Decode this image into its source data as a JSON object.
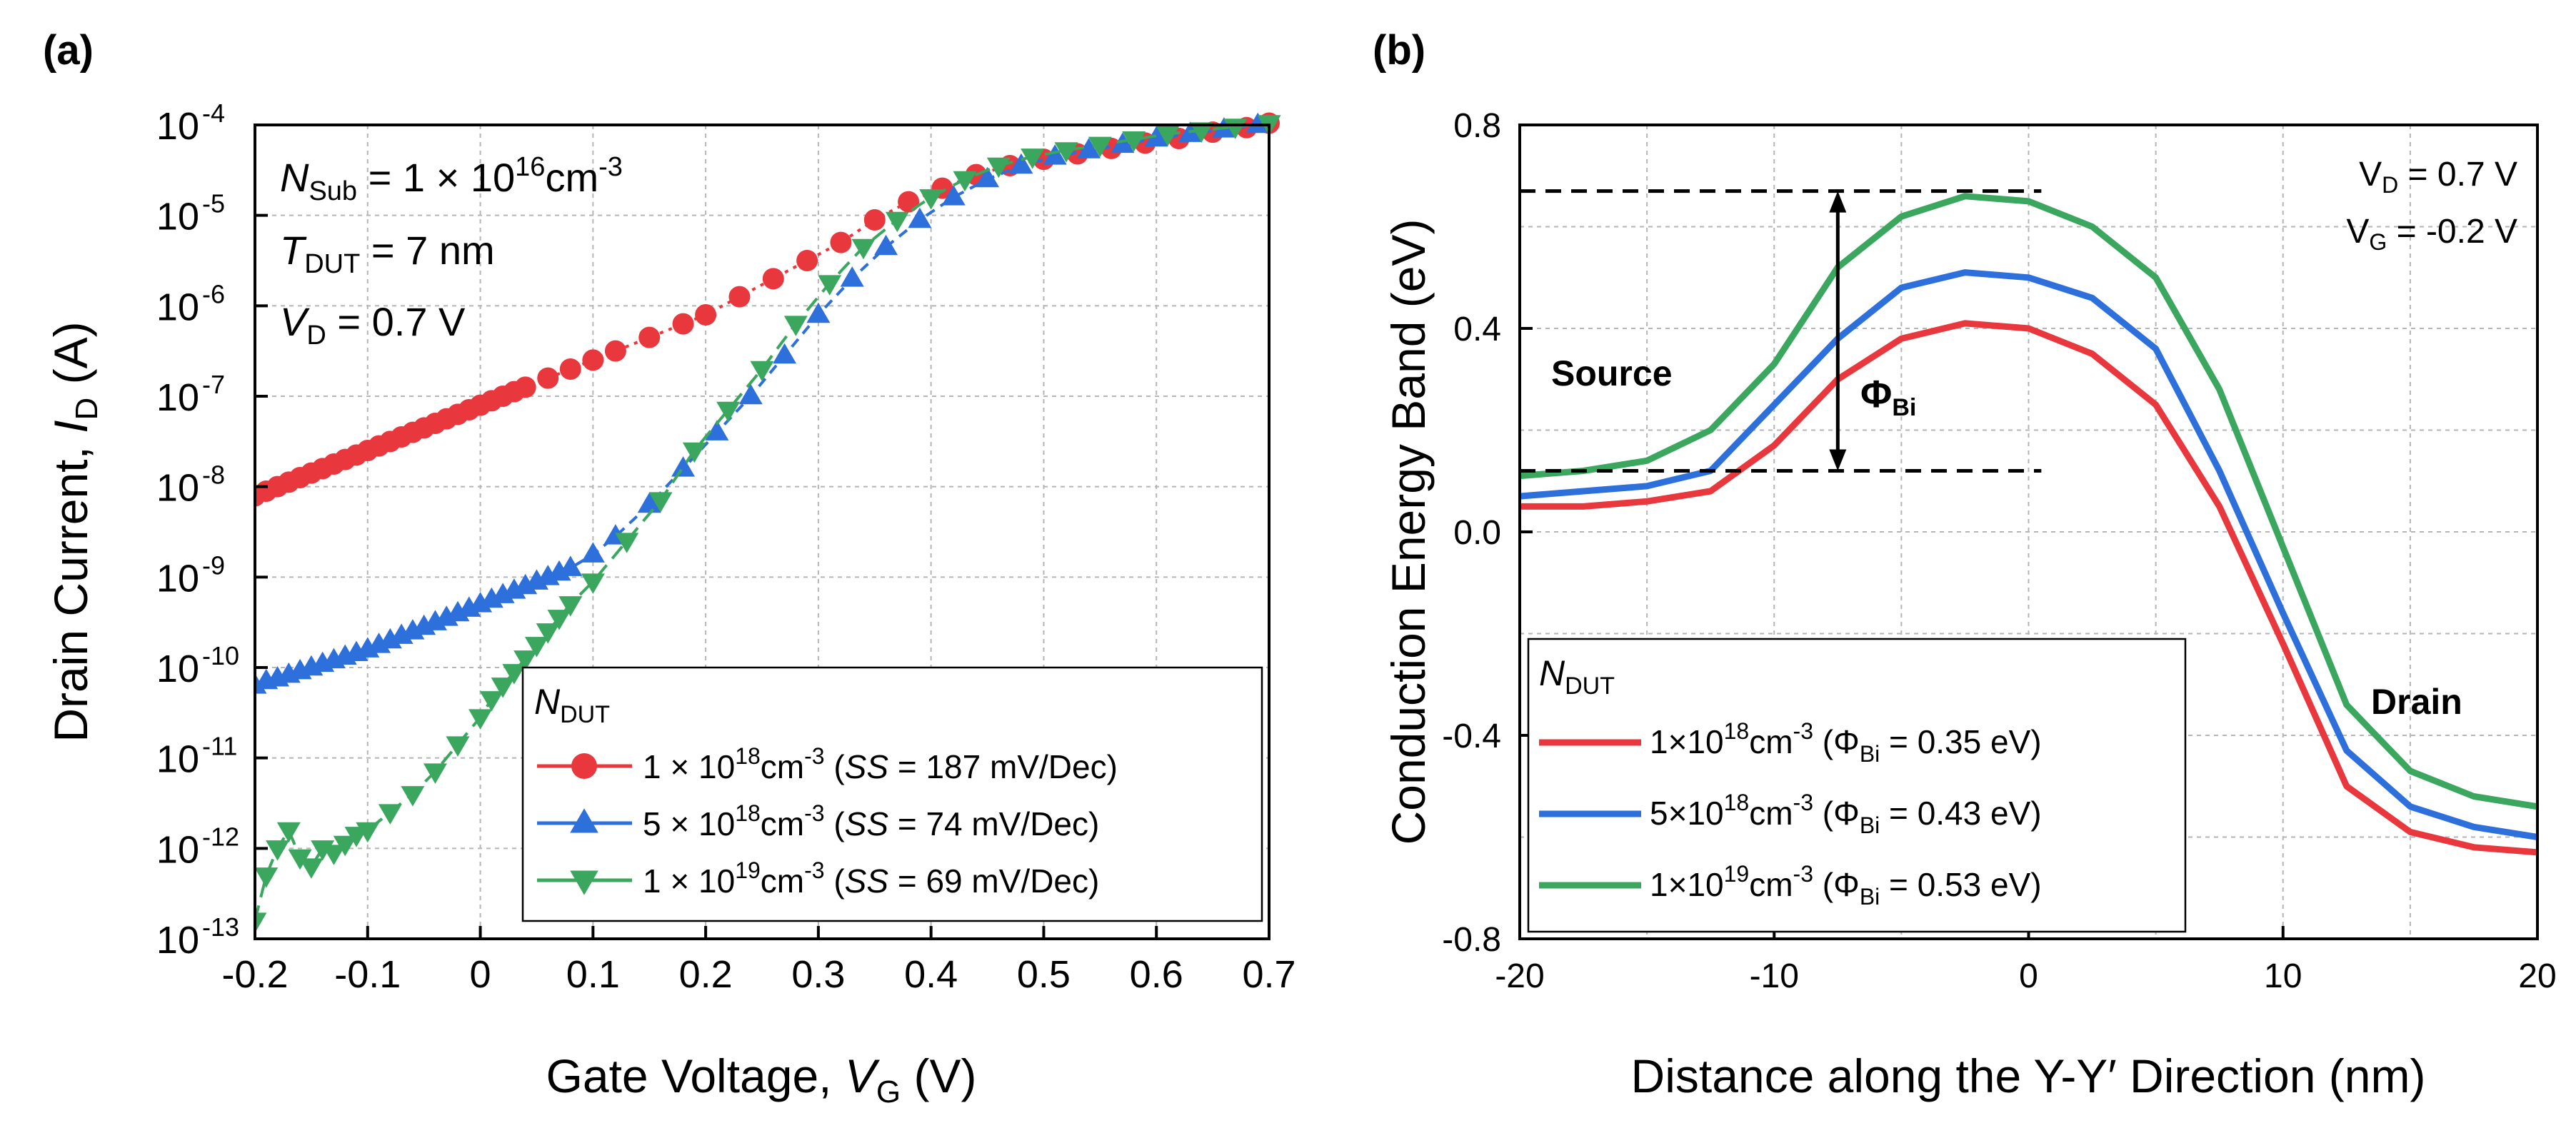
{
  "chart_data": [
    {
      "type": "scatter",
      "panel_label": "(a)",
      "xlabel": "Gate Voltage, V_G (V)",
      "ylabel": "Drain Current, I_D (A)",
      "xlim": [
        -0.2,
        0.7
      ],
      "ylim_log10": [
        -13,
        -4
      ],
      "xticks": [
        -0.2,
        -0.1,
        0,
        0.1,
        0.2,
        0.3,
        0.4,
        0.5,
        0.6,
        0.7
      ],
      "xtick_labels": [
        "-0.2",
        "-0.1",
        "0",
        "0.1",
        "0.2",
        "0.3",
        "0.4",
        "0.5",
        "0.6",
        "0.7"
      ],
      "ytick_exponents": [
        -13,
        -12,
        -11,
        -10,
        -9,
        -8,
        -7,
        -6,
        -5,
        -4
      ],
      "ytick_labels": [
        "10",
        "10",
        "10",
        "10",
        "10",
        "10",
        "10",
        "10",
        "10",
        "10"
      ],
      "ytick_sup": [
        "-13",
        "-12",
        "-11",
        "-10",
        "-9",
        "-8",
        "-7",
        "-6",
        "-5",
        "-4"
      ],
      "grid": true,
      "annotations": [
        {
          "main": "N",
          "sub": "Sub",
          "rest": " = 1 × 10",
          "sup": "16",
          "tail": "cm",
          "sup2": "-3"
        },
        {
          "main": "T",
          "sub": "DUT",
          "rest": " = 7 nm"
        },
        {
          "main": "V",
          "sub": "D",
          "rest": " = 0.7 V"
        }
      ],
      "legend": {
        "placement": "bottom-right",
        "title_main": "N",
        "title_sub": "DUT",
        "entries": [
          {
            "pre": "1 × 10",
            "sup": "18",
            "mid": "cm",
            "sup2": "-3",
            "open": " (",
            "ss": "SS",
            "post": " = 187 mV/Dec)"
          },
          {
            "pre": "5 × 10",
            "sup": "18",
            "mid": "cm",
            "sup2": "-3",
            "open": " (",
            "ss": "SS",
            "post": " = 74 mV/Dec)"
          },
          {
            "pre": "1 × 10",
            "sup": "19",
            "mid": "cm",
            "sup2": "-3",
            "open": " (",
            "ss": "SS",
            "post": " = 69 mV/Dec)"
          }
        ]
      },
      "series": [
        {
          "name": "1 × 10^18 cm^-3 (SS = 187 mV/Dec)",
          "color": "#e8383d",
          "marker": "circle",
          "x": [
            -0.2,
            -0.19,
            -0.18,
            -0.17,
            -0.16,
            -0.15,
            -0.14,
            -0.13,
            -0.12,
            -0.11,
            -0.1,
            -0.09,
            -0.08,
            -0.07,
            -0.06,
            -0.05,
            -0.04,
            -0.03,
            -0.02,
            -0.01,
            0,
            0.01,
            0.02,
            0.03,
            0.04,
            0.06,
            0.08,
            0.1,
            0.12,
            0.15,
            0.18,
            0.2,
            0.23,
            0.26,
            0.29,
            0.32,
            0.35,
            0.38,
            0.41,
            0.44,
            0.47,
            0.5,
            0.53,
            0.56,
            0.59,
            0.62,
            0.65,
            0.68,
            0.7
          ],
          "log10_y": [
            -8.1,
            -8.05,
            -8.0,
            -7.95,
            -7.9,
            -7.85,
            -7.8,
            -7.75,
            -7.7,
            -7.65,
            -7.6,
            -7.55,
            -7.5,
            -7.45,
            -7.4,
            -7.35,
            -7.3,
            -7.25,
            -7.2,
            -7.15,
            -7.1,
            -7.05,
            -7.0,
            -6.95,
            -6.9,
            -6.8,
            -6.7,
            -6.6,
            -6.5,
            -6.35,
            -6.2,
            -6.1,
            -5.9,
            -5.7,
            -5.5,
            -5.3,
            -5.05,
            -4.85,
            -4.7,
            -4.55,
            -4.45,
            -4.38,
            -4.32,
            -4.26,
            -4.2,
            -4.15,
            -4.08,
            -4.03,
            -3.98
          ]
        },
        {
          "name": "5 × 10^18 cm^-3 (SS = 74 mV/Dec)",
          "color": "#2d6fdb",
          "marker": "triangle-up",
          "x": [
            -0.2,
            -0.19,
            -0.18,
            -0.17,
            -0.16,
            -0.15,
            -0.14,
            -0.13,
            -0.12,
            -0.11,
            -0.1,
            -0.09,
            -0.08,
            -0.07,
            -0.06,
            -0.05,
            -0.04,
            -0.03,
            -0.02,
            -0.01,
            0,
            0.01,
            0.02,
            0.03,
            0.04,
            0.05,
            0.06,
            0.07,
            0.08,
            0.1,
            0.12,
            0.15,
            0.18,
            0.21,
            0.24,
            0.27,
            0.3,
            0.33,
            0.36,
            0.39,
            0.42,
            0.45,
            0.48,
            0.51,
            0.54,
            0.57,
            0.6,
            0.63,
            0.66,
            0.69
          ],
          "log10_y": [
            -10.2,
            -10.15,
            -10.12,
            -10.08,
            -10.04,
            -10.0,
            -9.96,
            -9.92,
            -9.88,
            -9.84,
            -9.8,
            -9.75,
            -9.7,
            -9.65,
            -9.6,
            -9.55,
            -9.5,
            -9.45,
            -9.4,
            -9.35,
            -9.3,
            -9.25,
            -9.2,
            -9.15,
            -9.1,
            -9.05,
            -9.0,
            -8.95,
            -8.9,
            -8.75,
            -8.55,
            -8.2,
            -7.8,
            -7.4,
            -7.0,
            -6.55,
            -6.1,
            -5.7,
            -5.35,
            -5.05,
            -4.8,
            -4.6,
            -4.45,
            -4.35,
            -4.28,
            -4.22,
            -4.15,
            -4.1,
            -4.05,
            -4.0
          ]
        },
        {
          "name": "1 × 10^19 cm^-3 (SS = 69 mV/Dec)",
          "color": "#3aa65e",
          "marker": "triangle-down",
          "x": [
            -0.2,
            -0.19,
            -0.18,
            -0.17,
            -0.16,
            -0.15,
            -0.14,
            -0.13,
            -0.12,
            -0.11,
            -0.1,
            -0.08,
            -0.06,
            -0.04,
            -0.02,
            0,
            0.01,
            0.02,
            0.03,
            0.04,
            0.05,
            0.06,
            0.07,
            0.08,
            0.1,
            0.13,
            0.16,
            0.19,
            0.22,
            0.25,
            0.28,
            0.31,
            0.34,
            0.37,
            0.4,
            0.43,
            0.46,
            0.49,
            0.52,
            0.55,
            0.58,
            0.61,
            0.64,
            0.67,
            0.7
          ],
          "log10_y": [
            -12.8,
            -12.3,
            -12.0,
            -11.8,
            -12.1,
            -12.2,
            -12.0,
            -12.05,
            -11.95,
            -11.85,
            -11.8,
            -11.6,
            -11.4,
            -11.15,
            -10.85,
            -10.55,
            -10.35,
            -10.2,
            -10.05,
            -9.9,
            -9.75,
            -9.6,
            -9.45,
            -9.3,
            -9.05,
            -8.6,
            -8.15,
            -7.6,
            -7.15,
            -6.7,
            -6.2,
            -5.75,
            -5.35,
            -5.05,
            -4.8,
            -4.6,
            -4.45,
            -4.35,
            -4.28,
            -4.22,
            -4.16,
            -4.1,
            -4.06,
            -4.02,
            -3.98
          ]
        }
      ]
    },
    {
      "type": "line",
      "panel_label": "(b)",
      "xlabel": "Distance along the Y-Y′ Direction (nm)",
      "ylabel": "Conduction Energy Band (eV)",
      "xlim": [
        -20,
        20
      ],
      "ylim": [
        -0.8,
        0.8
      ],
      "xticks": [
        -20,
        -10,
        0,
        10,
        20
      ],
      "xtick_labels": [
        "-20",
        "-10",
        "0",
        "10",
        "20"
      ],
      "yticks": [
        -0.8,
        -0.4,
        0,
        0.4,
        0.8
      ],
      "ytick_labels": [
        "-0.8",
        "-0.4",
        "0.0",
        "0.4",
        "0.8"
      ],
      "grid": true,
      "annotations": {
        "vd": {
          "main": "V",
          "sub": "D",
          "rest": " = 0.7 V"
        },
        "vg": {
          "main": "V",
          "sub": "G",
          "rest": " = -0.2 V"
        },
        "source": "Source",
        "drain": "Drain",
        "phi": {
          "main": "Φ",
          "sub": "Bi"
        },
        "barrier_top_ev": 0.67,
        "barrier_bottom_ev": 0.12,
        "arrow_x_nm": -7.5,
        "dash_x_range_nm": [
          -20,
          0.5
        ]
      },
      "legend": {
        "placement": "bottom-left",
        "title_main": "N",
        "title_sub": "DUT",
        "entries": [
          {
            "pre": "1×10",
            "sup": "18",
            "mid": "cm",
            "sup2": "-3",
            "open": " (Φ",
            "sub": "Bi",
            "post": " = 0.35 eV)"
          },
          {
            "pre": "5×10",
            "sup": "18",
            "mid": "cm",
            "sup2": "-3",
            "open": " (Φ",
            "sub": "Bi",
            "post": " = 0.43 eV)"
          },
          {
            "pre": "1×10",
            "sup": "19",
            "mid": "cm",
            "sup2": "-3",
            "open": " (Φ",
            "sub": "Bi",
            "post": " = 0.53 eV)"
          }
        ]
      },
      "series": [
        {
          "name": "1×10^18 cm^-3 (Φ_Bi = 0.35 eV)",
          "color": "#e8383d",
          "x": [
            -20,
            -17.5,
            -15,
            -12.5,
            -10,
            -7.5,
            -5,
            -2.5,
            0,
            2.5,
            5,
            7.5,
            10,
            12.5,
            15,
            17.5,
            20
          ],
          "y": [
            0.05,
            0.05,
            0.06,
            0.08,
            0.17,
            0.3,
            0.38,
            0.41,
            0.4,
            0.35,
            0.25,
            0.05,
            -0.22,
            -0.5,
            -0.59,
            -0.62,
            -0.63
          ]
        },
        {
          "name": "5×10^18 cm^-3 (Φ_Bi = 0.43 eV)",
          "color": "#2d6fdb",
          "x": [
            -20,
            -17.5,
            -15,
            -12.5,
            -10,
            -7.5,
            -5,
            -2.5,
            0,
            2.5,
            5,
            7.5,
            10,
            12.5,
            15,
            17.5,
            20
          ],
          "y": [
            0.07,
            0.08,
            0.09,
            0.12,
            0.25,
            0.38,
            0.48,
            0.51,
            0.5,
            0.46,
            0.36,
            0.12,
            -0.16,
            -0.43,
            -0.54,
            -0.58,
            -0.6
          ]
        },
        {
          "name": "1×10^19 cm^-3 (Φ_Bi = 0.53 eV)",
          "color": "#3aa65e",
          "x": [
            -20,
            -17.5,
            -15,
            -12.5,
            -10,
            -7.5,
            -5,
            -2.5,
            0,
            2.5,
            5,
            7.5,
            10,
            12.5,
            15,
            17.5,
            20
          ],
          "y": [
            0.11,
            0.12,
            0.14,
            0.2,
            0.33,
            0.52,
            0.62,
            0.66,
            0.65,
            0.6,
            0.5,
            0.28,
            -0.03,
            -0.34,
            -0.47,
            -0.52,
            -0.54
          ]
        }
      ]
    }
  ]
}
